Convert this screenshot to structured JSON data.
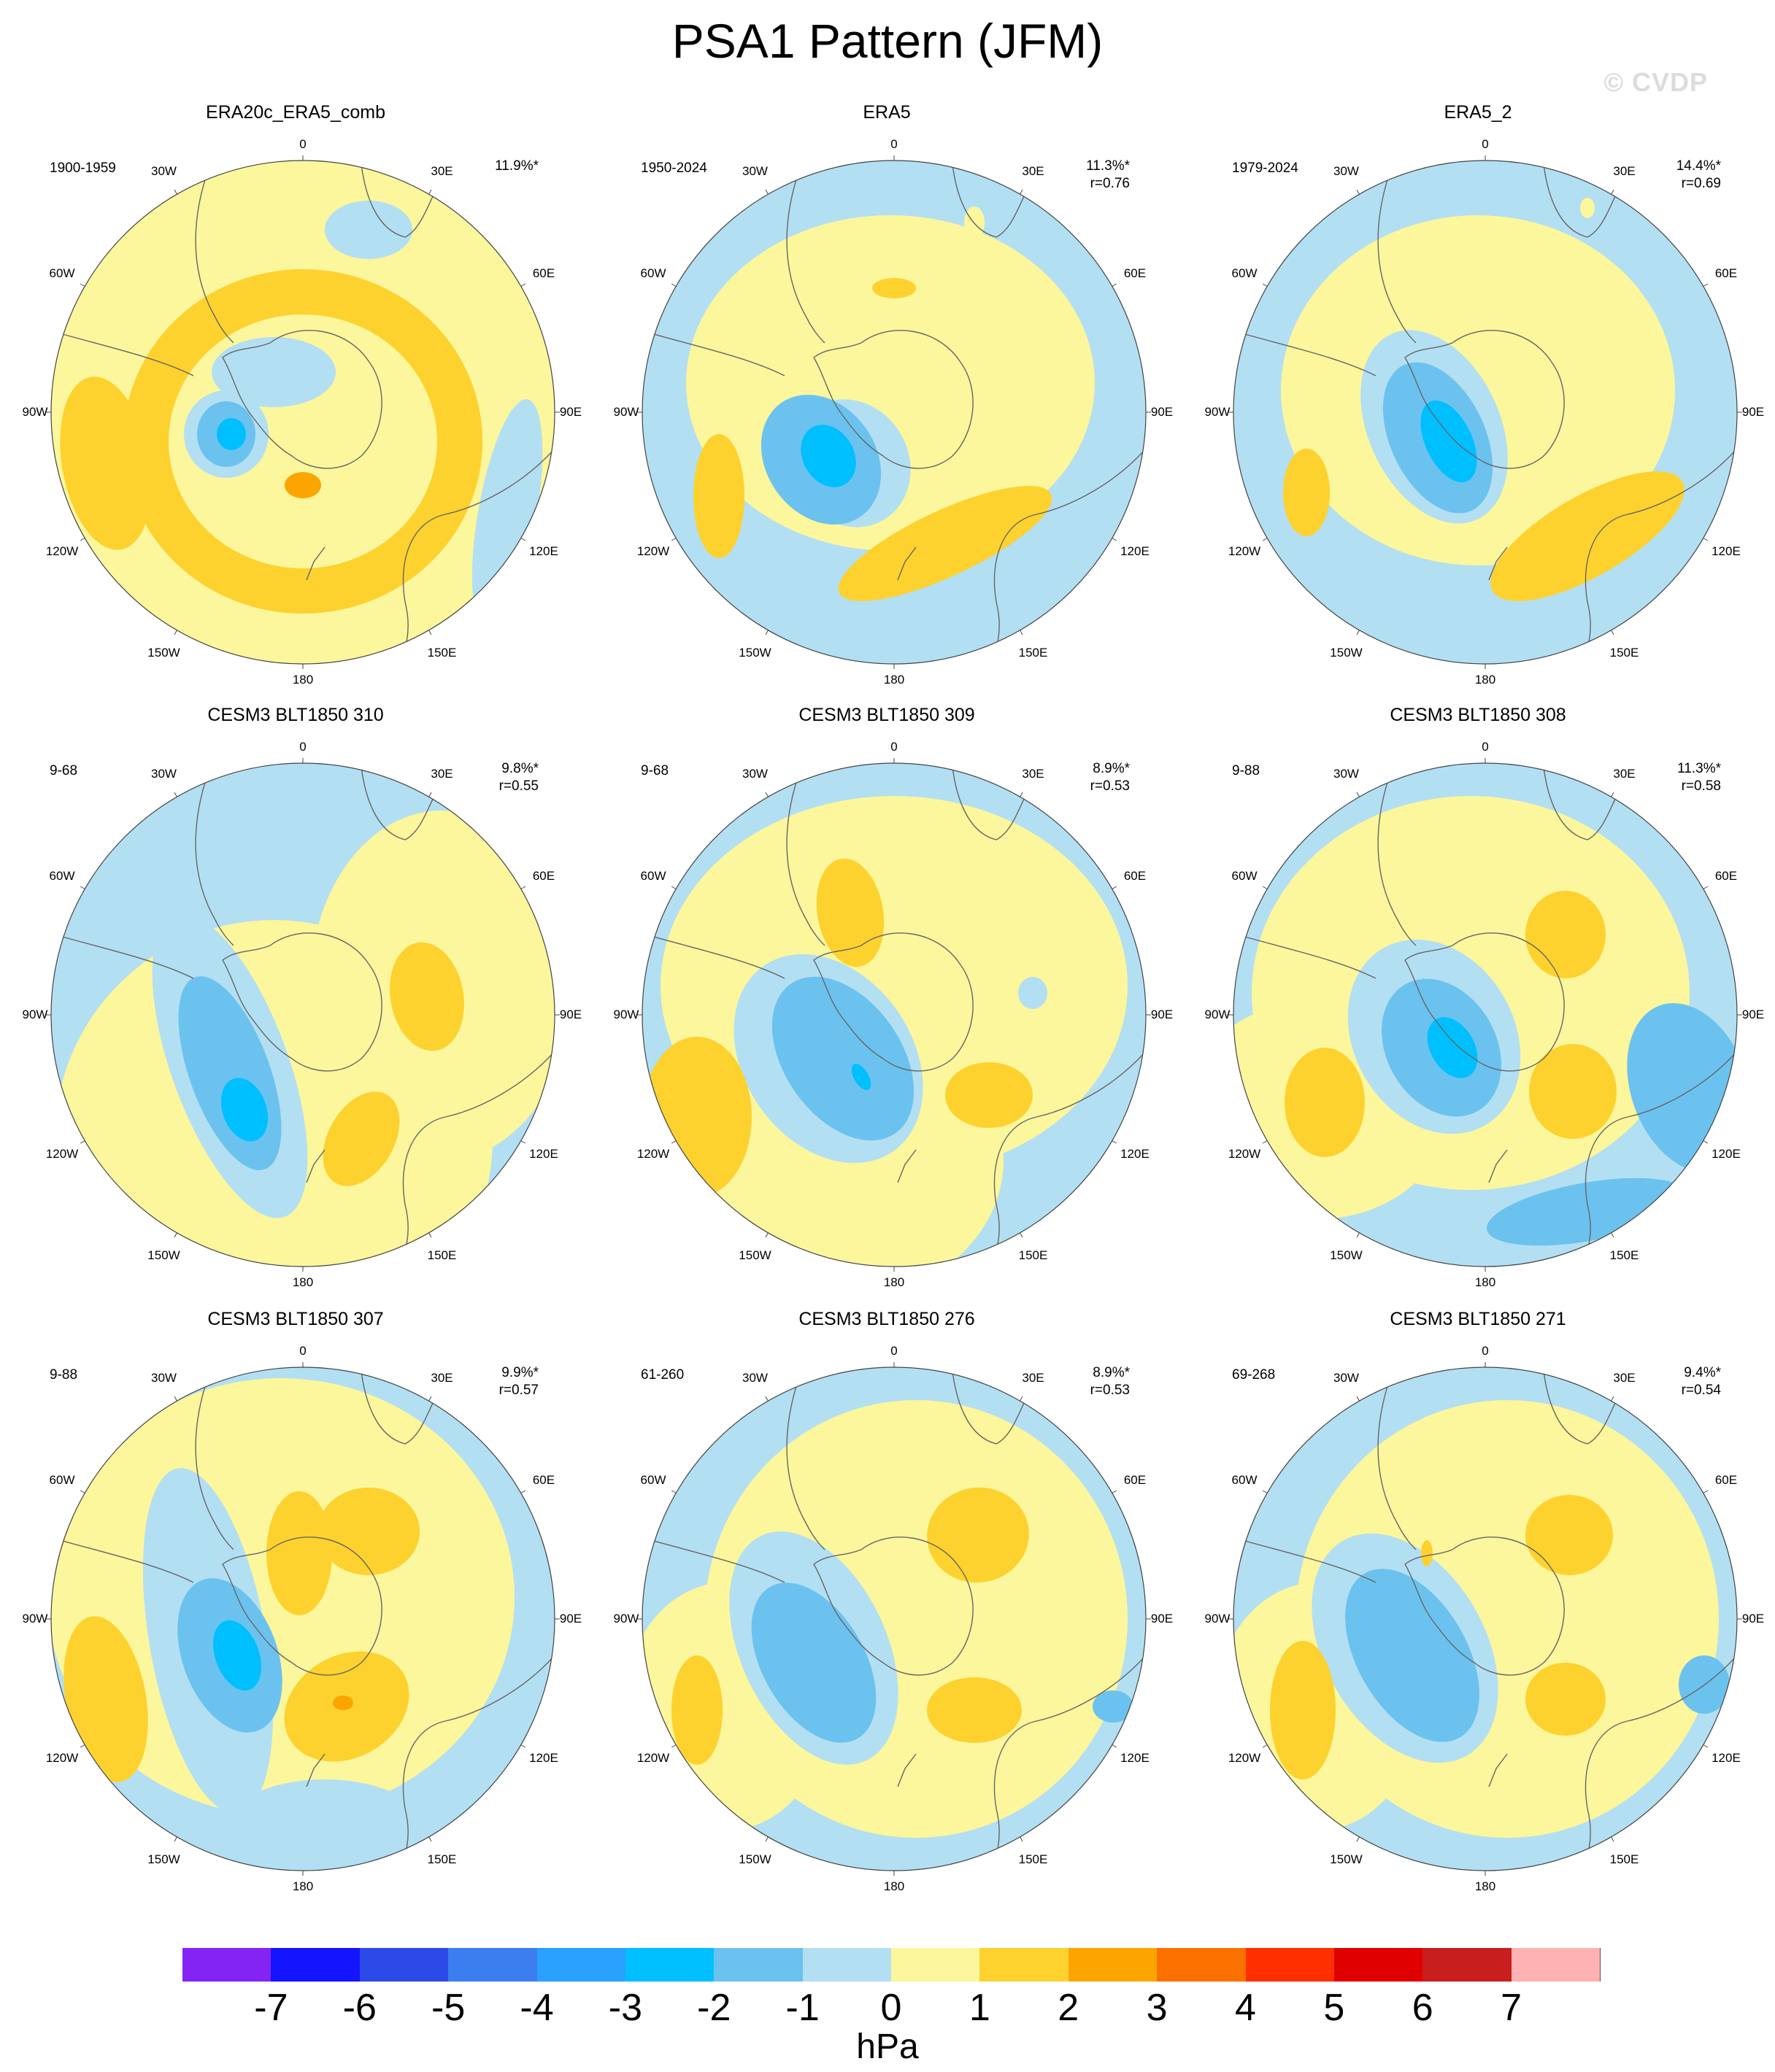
{
  "title": "PSA1 Pattern (JFM)",
  "watermark": "© CVDP",
  "longitude_labels": [
    "0",
    "30E",
    "60E",
    "90E",
    "120E",
    "150E",
    "180",
    "150W",
    "120W",
    "90W",
    "60W",
    "30W"
  ],
  "colors": {
    "neg1": "#b3dff3",
    "pos1": "#fcf69c",
    "pos2": "#fdd22e",
    "pos3": "#fca500",
    "neg2": "#6cc2ee",
    "neg3": "#00bfff",
    "coast": "#666666"
  },
  "panels": [
    {
      "title": "ERA20c_ERA5_comb",
      "years": "1900-1959",
      "pct": "11.9%*",
      "r": "",
      "bg": "pos1"
    },
    {
      "title": "ERA5",
      "years": "1950-2024",
      "pct": "11.3%*",
      "r": "r=0.76",
      "bg": "neg1"
    },
    {
      "title": "ERA5_2",
      "years": "1979-2024",
      "pct": "14.4%*",
      "r": "r=0.69",
      "bg": "neg1"
    },
    {
      "title": "CESM3 BLT1850 310",
      "years": "9-68",
      "pct": "9.8%*",
      "r": "r=0.55",
      "bg": "neg1"
    },
    {
      "title": "CESM3 BLT1850 309",
      "years": "9-68",
      "pct": "8.9%*",
      "r": "r=0.53",
      "bg": "neg1"
    },
    {
      "title": "CESM3 BLT1850 308",
      "years": "9-88",
      "pct": "11.3%*",
      "r": "r=0.58",
      "bg": "neg1"
    },
    {
      "title": "CESM3 BLT1850 307",
      "years": "9-88",
      "pct": "9.9%*",
      "r": "r=0.57",
      "bg": "neg1"
    },
    {
      "title": "CESM3 BLT1850 276",
      "years": "61-260",
      "pct": "8.9%*",
      "r": "r=0.53",
      "bg": "neg1"
    },
    {
      "title": "CESM3 BLT1850 271",
      "years": "69-268",
      "pct": "9.4%*",
      "r": "r=0.54",
      "bg": "neg1"
    }
  ],
  "colorbar": {
    "colors": [
      "#8424f4",
      "#1414ff",
      "#2b4ae8",
      "#3c7ef0",
      "#2aa0ff",
      "#00bfff",
      "#6cc2ee",
      "#b3dff3",
      "#fcf69c",
      "#fdd22e",
      "#fca500",
      "#fc7000",
      "#ff3000",
      "#e10000",
      "#c81e1e",
      "#ffb2b2"
    ],
    "labels": [
      "-7",
      "-6",
      "-5",
      "-4",
      "-3",
      "-2",
      "-1",
      "0",
      "1",
      "2",
      "3",
      "4",
      "5",
      "6",
      "7"
    ],
    "units": "hPa"
  }
}
